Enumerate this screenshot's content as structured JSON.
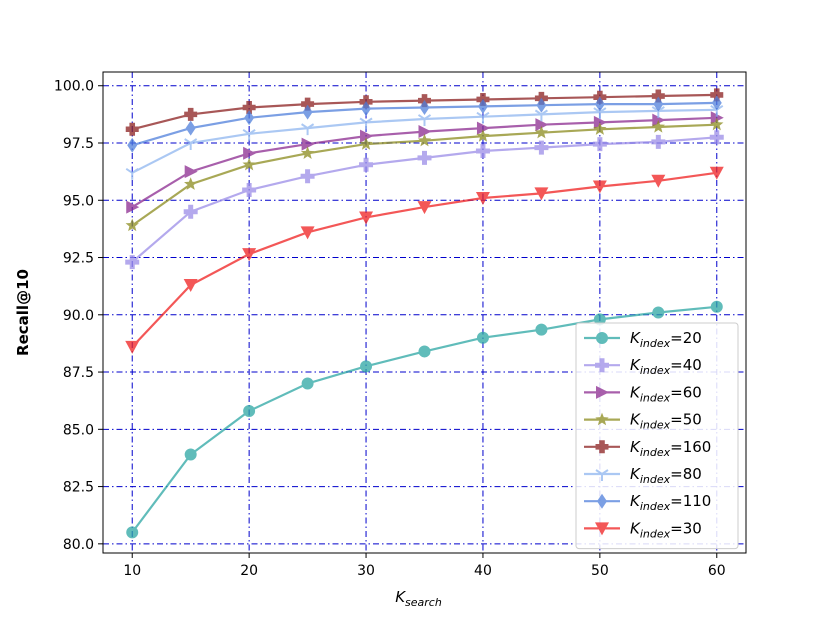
{
  "chart_data": {
    "type": "line",
    "xlabel_main": "K",
    "xlabel_sub": "search",
    "ylabel": "Recall@10",
    "xlim": [
      7.5,
      62.5
    ],
    "ylim": [
      79.6,
      100.6
    ],
    "x_ticks": [
      10,
      20,
      30,
      40,
      50,
      60
    ],
    "y_ticks": [
      80.0,
      82.5,
      85.0,
      87.5,
      90.0,
      92.5,
      95.0,
      97.5,
      100.0
    ],
    "grid": true,
    "legend_position": "lower-right",
    "x": [
      10,
      15,
      20,
      25,
      30,
      35,
      40,
      45,
      50,
      55,
      60
    ],
    "series": [
      {
        "name": "20",
        "name_prefix": "K",
        "name_sub": "index",
        "color": "#2ca6a4",
        "marker": "circle",
        "values": [
          80.5,
          83.9,
          85.8,
          87.0,
          87.75,
          88.4,
          89.0,
          89.35,
          89.8,
          90.1,
          90.35
        ]
      },
      {
        "name": "40",
        "name_prefix": "K",
        "name_sub": "index",
        "color": "#9b8de8",
        "marker": "plus",
        "values": [
          92.3,
          94.5,
          95.45,
          96.05,
          96.55,
          96.85,
          97.15,
          97.3,
          97.45,
          97.55,
          97.75
        ]
      },
      {
        "name": "60",
        "name_prefix": "K",
        "name_sub": "index",
        "color": "#8b2a90",
        "marker": "triangle-right",
        "values": [
          94.7,
          96.25,
          97.05,
          97.45,
          97.8,
          98.0,
          98.15,
          98.3,
          98.4,
          98.5,
          98.6
        ]
      },
      {
        "name": "50",
        "name_prefix": "K",
        "name_sub": "index",
        "color": "#8c8c1e",
        "marker": "star",
        "values": [
          93.9,
          95.7,
          96.55,
          97.05,
          97.45,
          97.6,
          97.8,
          97.95,
          98.1,
          98.2,
          98.3
        ]
      },
      {
        "name": "160",
        "name_prefix": "K",
        "name_sub": "index",
        "color": "#8b2020",
        "marker": "plus-bold",
        "values": [
          98.1,
          98.75,
          99.05,
          99.2,
          99.3,
          99.35,
          99.4,
          99.45,
          99.5,
          99.55,
          99.6
        ]
      },
      {
        "name": "80",
        "name_prefix": "K",
        "name_sub": "index",
        "color": "#8fb6f0",
        "marker": "tri-down",
        "values": [
          96.2,
          97.5,
          97.9,
          98.15,
          98.4,
          98.55,
          98.65,
          98.75,
          98.85,
          98.9,
          98.95
        ]
      },
      {
        "name": "110",
        "name_prefix": "K",
        "name_sub": "index",
        "color": "#4f7fdb",
        "marker": "diamond",
        "values": [
          97.4,
          98.15,
          98.6,
          98.85,
          99.0,
          99.05,
          99.1,
          99.15,
          99.2,
          99.2,
          99.25
        ]
      },
      {
        "name": "30",
        "name_prefix": "K",
        "name_sub": "index",
        "color": "#f02020",
        "marker": "triangle-down",
        "values": [
          88.6,
          91.3,
          92.65,
          93.6,
          94.25,
          94.7,
          95.1,
          95.3,
          95.6,
          95.85,
          96.2
        ]
      }
    ]
  }
}
